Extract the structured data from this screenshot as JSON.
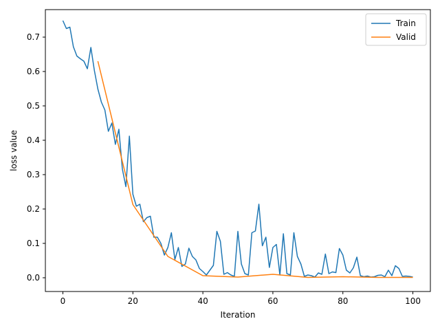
{
  "chart_data": {
    "type": "line",
    "title": "",
    "xlabel": "Iteration",
    "ylabel": "loss value",
    "xlim": [
      -5,
      105
    ],
    "ylim": [
      -0.04,
      0.78
    ],
    "xticks": [
      0,
      20,
      40,
      60,
      80,
      100
    ],
    "yticks": [
      0.0,
      0.1,
      0.2,
      0.3,
      0.4,
      0.5,
      0.6,
      0.7
    ],
    "xtick_labels": [
      "0",
      "20",
      "40",
      "60",
      "80",
      "100"
    ],
    "ytick_labels": [
      "0.0",
      "0.1",
      "0.2",
      "0.3",
      "0.4",
      "0.5",
      "0.6",
      "0.7"
    ],
    "grid": false,
    "legend": "upper right",
    "series": [
      {
        "name": "Train",
        "color": "#1f77b4",
        "x": [
          0,
          1,
          2,
          3,
          4,
          5,
          6,
          7,
          8,
          9,
          10,
          11,
          12,
          13,
          14,
          15,
          16,
          17,
          18,
          19,
          20,
          21,
          22,
          23,
          24,
          25,
          26,
          27,
          28,
          29,
          30,
          31,
          32,
          33,
          34,
          35,
          36,
          37,
          38,
          39,
          40,
          41,
          42,
          43,
          44,
          45,
          46,
          47,
          48,
          49,
          50,
          51,
          52,
          53,
          54,
          55,
          56,
          57,
          58,
          59,
          60,
          61,
          62,
          63,
          64,
          65,
          66,
          67,
          68,
          69,
          70,
          71,
          72,
          73,
          74,
          75,
          76,
          77,
          78,
          79,
          80,
          81,
          82,
          83,
          84,
          85,
          86,
          87,
          88,
          89,
          90,
          91,
          92,
          93,
          94,
          95,
          96,
          97,
          98,
          99,
          100
        ],
        "y": [
          0.748,
          0.725,
          0.729,
          0.672,
          0.645,
          0.637,
          0.63,
          0.608,
          0.67,
          0.603,
          0.549,
          0.511,
          0.488,
          0.426,
          0.45,
          0.388,
          0.432,
          0.316,
          0.265,
          0.412,
          0.243,
          0.208,
          0.214,
          0.163,
          0.175,
          0.179,
          0.118,
          0.118,
          0.1,
          0.066,
          0.088,
          0.131,
          0.053,
          0.088,
          0.033,
          0.04,
          0.086,
          0.062,
          0.052,
          0.027,
          0.018,
          0.008,
          0.022,
          0.036,
          0.135,
          0.106,
          0.01,
          0.015,
          0.008,
          0.004,
          0.135,
          0.04,
          0.012,
          0.008,
          0.131,
          0.136,
          0.214,
          0.093,
          0.118,
          0.03,
          0.088,
          0.097,
          0.008,
          0.128,
          0.012,
          0.008,
          0.131,
          0.062,
          0.04,
          0.004,
          0.008,
          0.006,
          0.002,
          0.014,
          0.01,
          0.069,
          0.012,
          0.017,
          0.015,
          0.085,
          0.066,
          0.022,
          0.014,
          0.029,
          0.06,
          0.006,
          0.003,
          0.005,
          0.002,
          0.003,
          0.007,
          0.008,
          0.003,
          0.022,
          0.006,
          0.035,
          0.027,
          0.004,
          0.005,
          0.004,
          0.002
        ]
      },
      {
        "name": "Valid",
        "color": "#ff7f0e",
        "x": [
          10,
          20,
          30,
          40,
          50,
          60,
          70,
          80,
          90,
          100
        ],
        "y": [
          0.63,
          0.213,
          0.062,
          0.006,
          0.002,
          0.01,
          0.001,
          0.003,
          0.001,
          0.001
        ]
      }
    ]
  }
}
